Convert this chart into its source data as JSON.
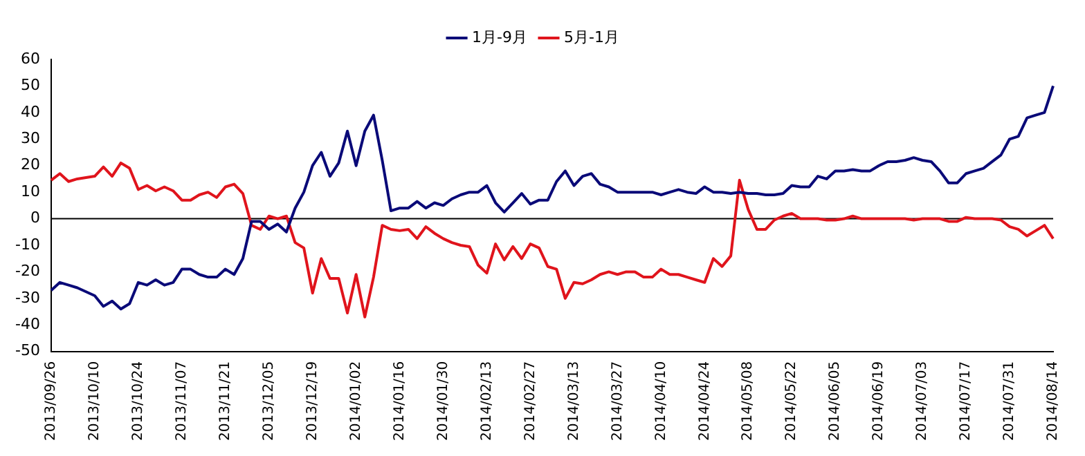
{
  "chart_data": {
    "type": "line",
    "categories": [
      "2013/09/26",
      null,
      null,
      null,
      null,
      "2013/10/10",
      null,
      null,
      null,
      null,
      "2013/10/24",
      null,
      null,
      null,
      null,
      "2013/11/07",
      null,
      null,
      null,
      null,
      "2013/11/21",
      null,
      null,
      null,
      null,
      "2013/12/05",
      null,
      null,
      null,
      null,
      "2013/12/19",
      null,
      null,
      null,
      null,
      "2014/01/02",
      null,
      null,
      null,
      null,
      "2014/01/16",
      null,
      null,
      null,
      null,
      "2014/01/30",
      null,
      null,
      null,
      null,
      "2014/02/13",
      null,
      null,
      null,
      null,
      "2014/02/27",
      null,
      null,
      null,
      null,
      "2014/03/13",
      null,
      null,
      null,
      null,
      "2014/03/27",
      null,
      null,
      null,
      null,
      "2014/04/10",
      null,
      null,
      null,
      null,
      "2014/04/24",
      null,
      null,
      null,
      null,
      "2014/05/08",
      null,
      null,
      null,
      null,
      "2014/05/22",
      null,
      null,
      null,
      null,
      "2014/06/05",
      null,
      null,
      null,
      null,
      "2014/06/19",
      null,
      null,
      null,
      null,
      "2014/07/03",
      null,
      null,
      null,
      null,
      "2014/07/17",
      null,
      null,
      null,
      null,
      "2014/07/31",
      null,
      null,
      null,
      null,
      "2014/08/14"
    ],
    "series": [
      {
        "name": "1月-9月",
        "color": "#0a0a78",
        "values": [
          -27,
          -24,
          -25,
          -26,
          -27.5,
          -29,
          -33,
          -31,
          -34,
          -32,
          -24,
          -25,
          -23,
          -25,
          -24,
          -19,
          -19,
          -21,
          -22,
          -22,
          -19,
          -21,
          -15,
          -1,
          -1,
          -4,
          -2,
          -5,
          4,
          10,
          20,
          25,
          16,
          21,
          33,
          20,
          33,
          39,
          22,
          3,
          4,
          4,
          6.5,
          4,
          6,
          5,
          7.5,
          9,
          10,
          10,
          12.5,
          6,
          2.5,
          6,
          9.5,
          5.5,
          7,
          7,
          14,
          18,
          12.5,
          16,
          17,
          13,
          12,
          10,
          10,
          10,
          10,
          10,
          9,
          10,
          11,
          10,
          9.5,
          12,
          10,
          10,
          9.5,
          10,
          9.5,
          9.5,
          9,
          9,
          9.5,
          12.5,
          12,
          12,
          16,
          15,
          18,
          18,
          18.5,
          18,
          18,
          20,
          21.5,
          21.5,
          22,
          23,
          22,
          21.5,
          18,
          13.5,
          13.5,
          17,
          18,
          19,
          21.5,
          24,
          30,
          31,
          38,
          39,
          40,
          50
        ]
      },
      {
        "name": "5月-1月",
        "color": "#e0141c",
        "values": [
          14.5,
          17,
          14,
          15,
          15.5,
          16,
          19.5,
          16,
          21,
          19,
          11,
          12.5,
          10.5,
          12,
          10.5,
          7,
          7,
          9,
          10,
          8,
          12,
          13,
          9.5,
          -2.5,
          -4,
          1,
          0,
          1,
          -9,
          -11,
          -28,
          -15,
          -22.5,
          -22.5,
          -35.5,
          -21,
          -37,
          -22,
          -2.5,
          -4,
          -4.5,
          -4,
          -7.5,
          -3,
          -5.5,
          -7.5,
          -9,
          -10,
          -10.5,
          -17.5,
          -20.5,
          -9.5,
          -15.5,
          -10.5,
          -15,
          -9.5,
          -11,
          -18,
          -19,
          -30,
          -24,
          -24.5,
          -23,
          -21,
          -20,
          -21,
          -20,
          -20,
          -22,
          -22,
          -19,
          -21,
          -21,
          -22,
          -23,
          -24,
          -15,
          -18,
          -14,
          14.5,
          3.5,
          -4,
          -4,
          -0.5,
          1,
          2,
          0,
          0,
          0,
          -0.5,
          -0.5,
          0,
          1,
          0,
          0,
          0,
          0,
          0,
          0,
          -0.5,
          0,
          0,
          0,
          -1,
          -1,
          0.5,
          0,
          0,
          0,
          -0.5,
          -3,
          -4,
          -6.5,
          -4.5,
          -2.5,
          -7.5
        ]
      }
    ],
    "ylim": [
      -50,
      60
    ],
    "yticks": [
      -50,
      -40,
      -30,
      -20,
      -10,
      0,
      10,
      20,
      30,
      40,
      50,
      60
    ],
    "ref_lines": [
      {
        "axis": "y",
        "value": 0,
        "color": "#000000"
      }
    ],
    "grid": false,
    "legend": "top",
    "marker": "none",
    "line_style": "solid"
  }
}
